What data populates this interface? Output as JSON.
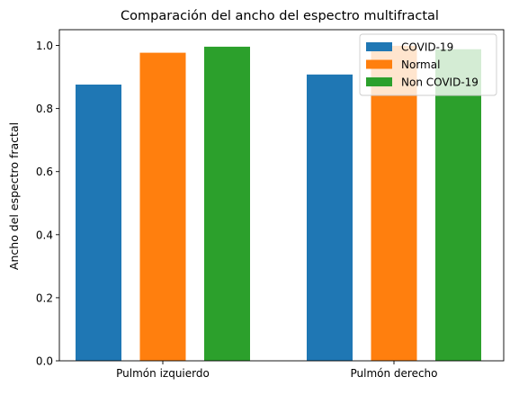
{
  "chart_data": {
    "type": "bar",
    "title": "Comparación del ancho del espectro multifractal",
    "xlabel": "",
    "ylabel": "Ancho del espectro fractal",
    "categories": [
      "Pulmón izquierdo",
      "Pulmón derecho"
    ],
    "series": [
      {
        "name": "COVID-19",
        "values": [
          0.876,
          0.908
        ],
        "color": "#1f77b4"
      },
      {
        "name": "Normal",
        "values": [
          0.977,
          0.999
        ],
        "color": "#ff7f0e"
      },
      {
        "name": "Non COVID-19",
        "values": [
          0.996,
          0.988
        ],
        "color": "#2ca02c"
      }
    ],
    "ylim": [
      0,
      1.05
    ],
    "yticks": [
      "0.0",
      "0.2",
      "0.4",
      "0.6",
      "0.8",
      "1.0"
    ],
    "grid": false,
    "legend_position": "top-right"
  }
}
